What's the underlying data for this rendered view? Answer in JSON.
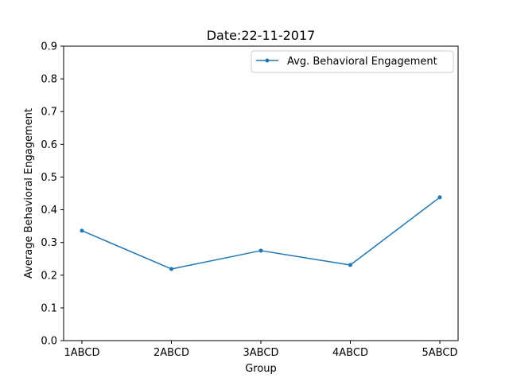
{
  "chart_data": {
    "type": "line",
    "title": "Date:22-11-2017",
    "xlabel": "Group",
    "ylabel": "Average Behavioral Engagement",
    "categories": [
      "1ABCD",
      "2ABCD",
      "3ABCD",
      "4ABCD",
      "5ABCD"
    ],
    "ylim": [
      0,
      0.9
    ],
    "yticks": [
      "0.0",
      "0.1",
      "0.2",
      "0.3",
      "0.4",
      "0.5",
      "0.6",
      "0.7",
      "0.8",
      "0.9"
    ],
    "grid": false,
    "legend_position": "top-right",
    "series": [
      {
        "name": "Avg. Behavioral Engagement",
        "color": "#1f77b4",
        "marker": "dot",
        "values": [
          0.336,
          0.219,
          0.275,
          0.231,
          0.438
        ]
      }
    ]
  }
}
